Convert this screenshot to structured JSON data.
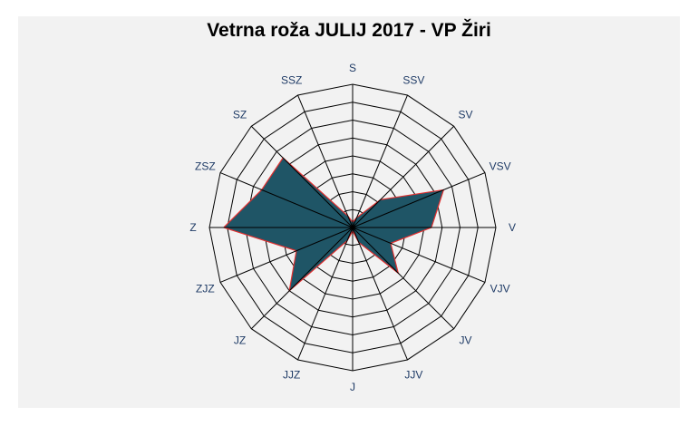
{
  "chart_data": {
    "type": "radar",
    "title": "Vetrna roža JULIJ 2017 - VP Žiri",
    "directions": [
      "S",
      "SSV",
      "SV",
      "VSV",
      "V",
      "VJV",
      "JV",
      "JJV",
      "J",
      "JJZ",
      "JZ",
      "ZJZ",
      "Z",
      "ZSZ",
      "SZ",
      "SSZ"
    ],
    "values": [
      0.3,
      0.6,
      2.2,
      5.5,
      4.4,
      2.3,
      3.6,
      0.9,
      0.2,
      0.8,
      5.0,
      3.4,
      7.2,
      5.5,
      5.5,
      0.7
    ],
    "rlim": [
      0,
      8
    ],
    "rings": 8,
    "fill_color": "#1f5566",
    "stroke_color": "#e03030",
    "grid_color": "#000000",
    "grid": true,
    "legend": "none"
  }
}
